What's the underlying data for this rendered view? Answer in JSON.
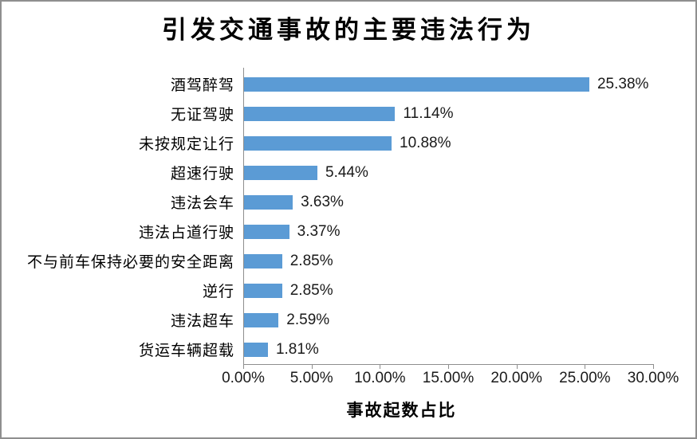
{
  "chart_data": {
    "type": "bar",
    "orientation": "horizontal",
    "title": "引发交通事故的主要违法行为",
    "xlabel": "事故起数占比",
    "ylabel": "",
    "categories": [
      "酒驾醉驾",
      "无证驾驶",
      "未按规定让行",
      "超速行驶",
      "违法会车",
      "违法占道行驶",
      "不与前车保持必要的安全距离",
      "逆行",
      "违法超车",
      "货运车辆超载"
    ],
    "values": [
      25.38,
      11.14,
      10.88,
      5.44,
      3.63,
      3.37,
      2.85,
      2.85,
      2.59,
      1.81
    ],
    "value_labels": [
      "25.38%",
      "11.14%",
      "10.88%",
      "5.44%",
      "3.63%",
      "3.37%",
      "2.85%",
      "2.85%",
      "2.59%",
      "1.81%"
    ],
    "x_ticks": [
      "0.00%",
      "5.00%",
      "10.00%",
      "15.00%",
      "20.00%",
      "25.00%",
      "30.00%"
    ],
    "xlim": [
      0,
      30
    ],
    "grid": false,
    "legend": "none",
    "bar_color": "#5B9BD5",
    "axis_color": "#8E8E8E",
    "text_color": "#000000"
  }
}
